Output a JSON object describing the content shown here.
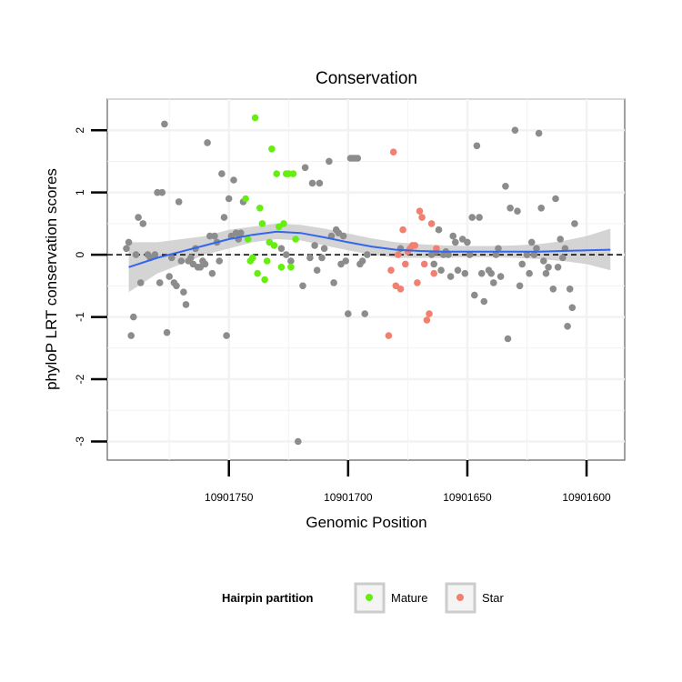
{
  "chart_data": {
    "type": "scatter",
    "title": "Conservation",
    "xlabel": "Genomic Position",
    "ylabel": "phyloP LRT conservation scores",
    "xlim": [
      10901584,
      10901801
    ],
    "x_reversed": true,
    "ylim": [
      -3.3,
      2.5
    ],
    "x_ticks": [
      10901750,
      10901700,
      10901650,
      10901600
    ],
    "y_ticks": [
      2,
      1,
      0,
      -1,
      -2,
      -3
    ],
    "grid": true,
    "reference_line": {
      "y": 0,
      "style": "dashed",
      "color": "#000000"
    },
    "legend": {
      "title": "Hairpin partition",
      "position": "bottom",
      "entries": [
        {
          "label": "Mature",
          "color": "#66ee11"
        },
        {
          "label": "Star",
          "color": "#f08070"
        }
      ]
    },
    "colors": {
      "other": "#8c8c8c",
      "Mature": "#66ee11",
      "Star": "#f08070",
      "smooth": "#3366ee",
      "band": "#cccccc"
    },
    "series": [
      {
        "group": "other",
        "points": [
          [
            10901793,
            0.1
          ],
          [
            10901792,
            0.2
          ],
          [
            10901791,
            -1.3
          ],
          [
            10901790,
            -1.0
          ],
          [
            10901789,
            0.0
          ],
          [
            10901788,
            0.6
          ],
          [
            10901787,
            -0.45
          ],
          [
            10901786,
            0.5
          ],
          [
            10901784,
            0.0
          ],
          [
            10901783,
            -0.05
          ],
          [
            10901781,
            0.0
          ],
          [
            10901780,
            1.0
          ],
          [
            10901779,
            -0.45
          ],
          [
            10901778,
            1.0
          ],
          [
            10901777,
            2.1
          ],
          [
            10901776,
            -1.25
          ],
          [
            10901775,
            -0.35
          ],
          [
            10901774,
            -0.05
          ],
          [
            10901773,
            -0.45
          ],
          [
            10901772,
            -0.5
          ],
          [
            10901771,
            0.85
          ],
          [
            10901770,
            -0.1
          ],
          [
            10901769,
            -0.6
          ],
          [
            10901768,
            -0.8
          ],
          [
            10901767,
            -0.1
          ],
          [
            10901766,
            -0.05
          ],
          [
            10901765,
            -0.15
          ],
          [
            10901764,
            0.1
          ],
          [
            10901763,
            -0.2
          ],
          [
            10901762,
            -0.2
          ],
          [
            10901761,
            -0.1
          ],
          [
            10901760,
            -0.15
          ],
          [
            10901759,
            1.8
          ],
          [
            10901758,
            0.3
          ],
          [
            10901757,
            -0.3
          ],
          [
            10901756,
            0.3
          ],
          [
            10901755,
            0.2
          ],
          [
            10901754,
            -0.1
          ],
          [
            10901753,
            1.3
          ],
          [
            10901752,
            0.6
          ],
          [
            10901751,
            -1.3
          ],
          [
            10901750,
            0.9
          ],
          [
            10901749,
            0.3
          ],
          [
            10901748,
            1.2
          ],
          [
            10901747,
            0.35
          ],
          [
            10901746,
            0.25
          ],
          [
            10901745,
            0.35
          ],
          [
            10901744,
            0.85
          ],
          [
            10901728,
            0.1
          ],
          [
            10901726,
            0.0
          ],
          [
            10901724,
            -0.1
          ],
          [
            10901721,
            -3.0
          ],
          [
            10901719,
            -0.5
          ],
          [
            10901718,
            1.4
          ],
          [
            10901716,
            -0.05
          ],
          [
            10901715,
            1.15
          ],
          [
            10901714,
            0.15
          ],
          [
            10901713,
            -0.25
          ],
          [
            10901712,
            1.15
          ],
          [
            10901711,
            -0.05
          ],
          [
            10901710,
            0.1
          ],
          [
            10901708,
            1.5
          ],
          [
            10901707,
            0.3
          ],
          [
            10901706,
            -0.45
          ],
          [
            10901705,
            0.4
          ],
          [
            10901704,
            0.35
          ],
          [
            10901703,
            -0.15
          ],
          [
            10901702,
            0.3
          ],
          [
            10901701,
            -0.1
          ],
          [
            10901700,
            -0.95
          ],
          [
            10901699,
            1.55
          ],
          [
            10901698,
            1.55
          ],
          [
            10901697,
            1.55
          ],
          [
            10901696,
            1.55
          ],
          [
            10901695,
            -0.15
          ],
          [
            10901694,
            -0.1
          ],
          [
            10901693,
            -0.95
          ],
          [
            10901692,
            0.0
          ],
          [
            10901678,
            0.1
          ],
          [
            10901665,
            0.0
          ],
          [
            10901664,
            -0.15
          ],
          [
            10901663,
            0.05
          ],
          [
            10901662,
            0.4
          ],
          [
            10901661,
            -0.25
          ],
          [
            10901660,
            0.0
          ],
          [
            10901659,
            0.05
          ],
          [
            10901658,
            0.0
          ],
          [
            10901657,
            -0.35
          ],
          [
            10901656,
            0.3
          ],
          [
            10901655,
            0.2
          ],
          [
            10901654,
            -0.25
          ],
          [
            10901652,
            0.25
          ],
          [
            10901651,
            -0.3
          ],
          [
            10901650,
            0.2
          ],
          [
            10901649,
            0.0
          ],
          [
            10901648,
            0.6
          ],
          [
            10901647,
            -0.65
          ],
          [
            10901646,
            1.75
          ],
          [
            10901645,
            0.6
          ],
          [
            10901644,
            -0.3
          ],
          [
            10901643,
            -0.75
          ],
          [
            10901641,
            -0.25
          ],
          [
            10901640,
            -0.3
          ],
          [
            10901639,
            -0.45
          ],
          [
            10901638,
            0.0
          ],
          [
            10901637,
            0.1
          ],
          [
            10901636,
            -0.35
          ],
          [
            10901634,
            1.1
          ],
          [
            10901633,
            -1.35
          ],
          [
            10901632,
            0.75
          ],
          [
            10901630,
            2.0
          ],
          [
            10901629,
            0.7
          ],
          [
            10901628,
            -0.5
          ],
          [
            10901627,
            -0.15
          ],
          [
            10901625,
            0.0
          ],
          [
            10901624,
            -0.3
          ],
          [
            10901623,
            0.2
          ],
          [
            10901622,
            0.0
          ],
          [
            10901621,
            0.1
          ],
          [
            10901620,
            1.95
          ],
          [
            10901619,
            0.75
          ],
          [
            10901618,
            -0.1
          ],
          [
            10901617,
            -0.3
          ],
          [
            10901616,
            -0.2
          ],
          [
            10901614,
            -0.55
          ],
          [
            10901613,
            0.9
          ],
          [
            10901612,
            -0.2
          ],
          [
            10901611,
            0.25
          ],
          [
            10901610,
            -0.05
          ],
          [
            10901609,
            0.1
          ],
          [
            10901608,
            -1.15
          ],
          [
            10901607,
            -0.55
          ],
          [
            10901606,
            -0.85
          ],
          [
            10901605,
            0.5
          ]
        ]
      },
      {
        "group": "Mature",
        "points": [
          [
            10901743,
            0.9
          ],
          [
            10901742,
            0.25
          ],
          [
            10901741,
            -0.1
          ],
          [
            10901740,
            -0.05
          ],
          [
            10901739,
            2.2
          ],
          [
            10901738,
            -0.3
          ],
          [
            10901737,
            0.75
          ],
          [
            10901736,
            0.5
          ],
          [
            10901735,
            -0.4
          ],
          [
            10901734,
            -0.1
          ],
          [
            10901733,
            0.2
          ],
          [
            10901732,
            1.7
          ],
          [
            10901731,
            0.15
          ],
          [
            10901730,
            1.3
          ],
          [
            10901729,
            0.45
          ],
          [
            10901728,
            -0.2
          ],
          [
            10901727,
            0.5
          ],
          [
            10901726,
            1.3
          ],
          [
            10901725,
            1.3
          ],
          [
            10901724,
            -0.2
          ],
          [
            10901723,
            1.3
          ],
          [
            10901722,
            0.25
          ]
        ]
      },
      {
        "group": "Star",
        "points": [
          [
            10901683,
            -1.3
          ],
          [
            10901682,
            -0.25
          ],
          [
            10901681,
            1.65
          ],
          [
            10901680,
            -0.5
          ],
          [
            10901679,
            0.0
          ],
          [
            10901678,
            -0.55
          ],
          [
            10901677,
            0.4
          ],
          [
            10901676,
            -0.15
          ],
          [
            10901675,
            0.05
          ],
          [
            10901674,
            0.1
          ],
          [
            10901673,
            0.15
          ],
          [
            10901672,
            0.15
          ],
          [
            10901671,
            -0.45
          ],
          [
            10901670,
            0.7
          ],
          [
            10901669,
            0.6
          ],
          [
            10901668,
            -0.15
          ],
          [
            10901667,
            -1.05
          ],
          [
            10901666,
            -0.95
          ],
          [
            10901665,
            0.5
          ],
          [
            10901664,
            -0.3
          ],
          [
            10901663,
            0.1
          ]
        ]
      }
    ],
    "smooth": {
      "x": [
        10901792,
        10901780,
        10901770,
        10901760,
        10901750,
        10901740,
        10901730,
        10901720,
        10901710,
        10901700,
        10901690,
        10901680,
        10901670,
        10901660,
        10901650,
        10901640,
        10901630,
        10901620,
        10901610,
        10901600,
        10901590
      ],
      "y": [
        -0.2,
        -0.05,
        0.05,
        0.15,
        0.25,
        0.32,
        0.37,
        0.35,
        0.28,
        0.2,
        0.13,
        0.08,
        0.06,
        0.05,
        0.05,
        0.05,
        0.05,
        0.05,
        0.06,
        0.07,
        0.08
      ],
      "lower": [
        -0.6,
        -0.3,
        -0.15,
        0.0,
        0.1,
        0.2,
        0.25,
        0.23,
        0.15,
        0.07,
        0.0,
        -0.05,
        -0.05,
        -0.05,
        -0.04,
        -0.04,
        -0.05,
        -0.07,
        -0.1,
        -0.15,
        -0.25
      ],
      "upper": [
        0.2,
        0.2,
        0.25,
        0.3,
        0.4,
        0.45,
        0.5,
        0.48,
        0.42,
        0.34,
        0.26,
        0.2,
        0.17,
        0.15,
        0.14,
        0.14,
        0.15,
        0.17,
        0.22,
        0.3,
        0.42
      ]
    }
  }
}
